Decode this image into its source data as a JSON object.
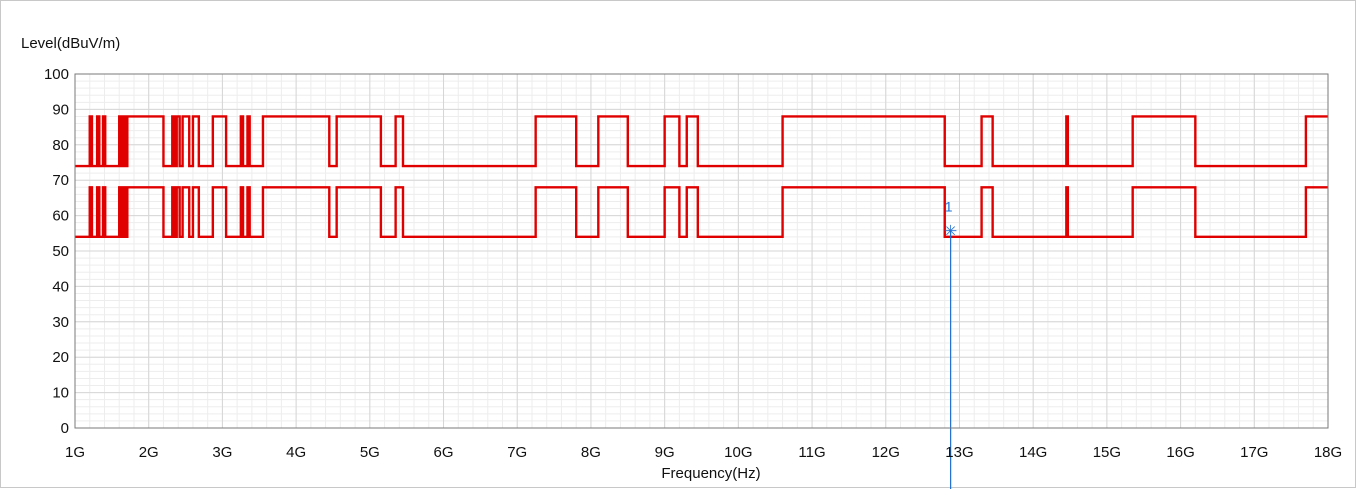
{
  "chart_data": {
    "type": "line",
    "ylabel": "Level(dBuV/m)",
    "xlabel": "Frequency(Hz)",
    "xlim": [
      1,
      18
    ],
    "ylim": [
      0,
      100
    ],
    "x_unit": "GHz",
    "x_tick_labels": [
      "1G",
      "2G",
      "3G",
      "4G",
      "5G",
      "6G",
      "7G",
      "8G",
      "9G",
      "10G",
      "11G",
      "12G",
      "13G",
      "14G",
      "15G",
      "16G",
      "17G",
      "18G"
    ],
    "y_tick_labels": [
      "0",
      "10",
      "20",
      "30",
      "40",
      "50",
      "60",
      "70",
      "80",
      "90",
      "100"
    ],
    "grid": true,
    "line_color": "#e00000",
    "series": [
      {
        "x": [
          1,
          1.2,
          1.2,
          1.23,
          1.23,
          1.3,
          1.3,
          1.33,
          1.33,
          1.38,
          1.38,
          1.41,
          1.41,
          1.6,
          1.6,
          1.63,
          1.63,
          1.65,
          1.65,
          1.68,
          1.68,
          1.71,
          1.71,
          2.2,
          2.2,
          2.32,
          2.32,
          2.35,
          2.35,
          2.38,
          2.38,
          2.42,
          2.42,
          2.46,
          2.46,
          2.55,
          2.55,
          2.6,
          2.6,
          2.68,
          2.68,
          2.87,
          2.87,
          3.05,
          3.05,
          3.25,
          3.25,
          3.28,
          3.28,
          3.34,
          3.34,
          3.37,
          3.37,
          3.55,
          3.55,
          4.45,
          4.45,
          4.55,
          4.55,
          5.15,
          5.15,
          5.35,
          5.35,
          5.45,
          5.45,
          7.25,
          7.25,
          7.8,
          7.8,
          8.1,
          8.1,
          8.5,
          8.5,
          9,
          9,
          9.2,
          9.2,
          9.3,
          9.3,
          9.45,
          9.45,
          10.6,
          10.6,
          12.8,
          12.8,
          13.3,
          13.3,
          13.45,
          13.45,
          14.45,
          14.45,
          14.47,
          14.47,
          15.35,
          15.35,
          16.2,
          16.2,
          17.7,
          17.7,
          18
        ],
        "y": [
          74,
          74,
          88,
          88,
          74,
          74,
          88,
          88,
          74,
          74,
          88,
          88,
          74,
          74,
          88,
          88,
          74,
          74,
          88,
          88,
          74,
          74,
          88,
          88,
          74,
          74,
          88,
          88,
          74,
          74,
          88,
          88,
          74,
          74,
          88,
          88,
          74,
          74,
          88,
          88,
          74,
          74,
          88,
          88,
          74,
          74,
          88,
          88,
          74,
          74,
          88,
          88,
          74,
          74,
          88,
          88,
          74,
          74,
          88,
          88,
          74,
          74,
          88,
          88,
          74,
          74,
          88,
          88,
          74,
          74,
          88,
          88,
          74,
          74,
          88,
          88,
          74,
          74,
          88,
          88,
          74,
          74,
          88,
          88,
          74,
          74,
          88,
          88,
          74,
          74,
          88,
          88,
          74,
          74,
          88,
          88,
          74,
          74,
          88,
          88
        ]
      },
      {
        "x": [
          1,
          1.2,
          1.2,
          1.23,
          1.23,
          1.3,
          1.3,
          1.33,
          1.33,
          1.38,
          1.38,
          1.41,
          1.41,
          1.6,
          1.6,
          1.63,
          1.63,
          1.65,
          1.65,
          1.68,
          1.68,
          1.71,
          1.71,
          2.2,
          2.2,
          2.32,
          2.32,
          2.35,
          2.35,
          2.38,
          2.38,
          2.42,
          2.42,
          2.46,
          2.46,
          2.55,
          2.55,
          2.6,
          2.6,
          2.68,
          2.68,
          2.87,
          2.87,
          3.05,
          3.05,
          3.25,
          3.25,
          3.28,
          3.28,
          3.34,
          3.34,
          3.37,
          3.37,
          3.55,
          3.55,
          4.45,
          4.45,
          4.55,
          4.55,
          5.15,
          5.15,
          5.35,
          5.35,
          5.45,
          5.45,
          7.25,
          7.25,
          7.8,
          7.8,
          8.1,
          8.1,
          8.5,
          8.5,
          9,
          9,
          9.2,
          9.2,
          9.3,
          9.3,
          9.45,
          9.45,
          10.6,
          10.6,
          12.8,
          12.8,
          13.3,
          13.3,
          13.45,
          13.45,
          14.45,
          14.45,
          14.47,
          14.47,
          15.35,
          15.35,
          16.2,
          16.2,
          17.7,
          17.7,
          18
        ],
        "y": [
          54,
          54,
          68,
          68,
          54,
          54,
          68,
          68,
          54,
          54,
          68,
          68,
          54,
          54,
          68,
          68,
          54,
          54,
          68,
          68,
          54,
          54,
          68,
          68,
          54,
          54,
          68,
          68,
          54,
          54,
          68,
          68,
          54,
          54,
          68,
          68,
          54,
          54,
          68,
          68,
          54,
          54,
          68,
          68,
          54,
          54,
          68,
          68,
          54,
          54,
          68,
          68,
          54,
          54,
          68,
          68,
          54,
          54,
          68,
          68,
          54,
          54,
          68,
          68,
          54,
          54,
          68,
          68,
          54,
          54,
          68,
          68,
          54,
          54,
          68,
          68,
          54,
          54,
          68,
          68,
          54,
          54,
          68,
          68,
          54,
          54,
          68,
          68,
          54,
          54,
          68,
          68,
          54,
          54,
          68,
          68,
          54,
          54,
          68,
          68
        ]
      }
    ],
    "markers": [
      {
        "label": "1",
        "x": 12.88,
        "y": 55.5,
        "color": "#1f6fd1"
      }
    ]
  }
}
